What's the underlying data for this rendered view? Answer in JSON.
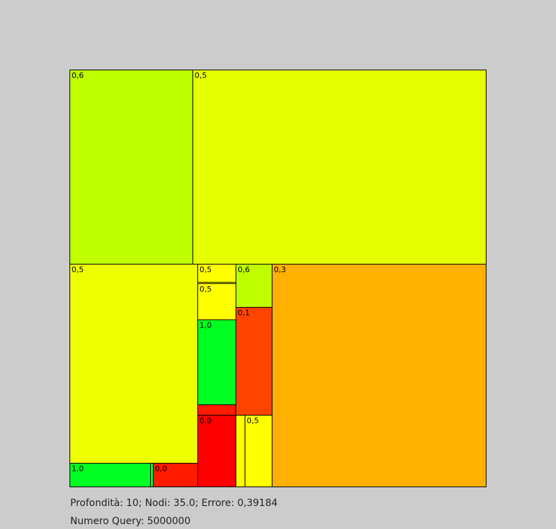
{
  "status": {
    "line1": "Profondità: 10; Nodi: 35.0; Errore: 0,39184",
    "line2": "Numero Query: 5000000"
  },
  "cells": [
    {
      "label": "0,6",
      "color": "#bfff00"
    },
    {
      "label": "0,5",
      "color": "#e6ff00"
    },
    {
      "label": "0,5",
      "color": "#eeff00"
    },
    {
      "label": "1,0",
      "color": "#00ff22"
    },
    {
      "label": "",
      "color": "#00ff22"
    },
    {
      "label": "0,0",
      "color": "#ff1a00"
    },
    {
      "label": "0,5",
      "color": "#ffff00"
    },
    {
      "label": "",
      "color": "#ffff00"
    },
    {
      "label": "0,5",
      "color": "#ffff00"
    },
    {
      "label": "1,0",
      "color": "#00ff22"
    },
    {
      "label": "",
      "color": "#ff1a00"
    },
    {
      "label": "0,0",
      "color": "#ff0000"
    },
    {
      "label": "0,6",
      "color": "#bfff00"
    },
    {
      "label": "0,1",
      "color": "#ff4400"
    },
    {
      "label": "",
      "color": "#ffff00"
    },
    {
      "label": "0,5",
      "color": "#ffff00"
    },
    {
      "label": "0,3",
      "color": "#ffb000"
    }
  ]
}
